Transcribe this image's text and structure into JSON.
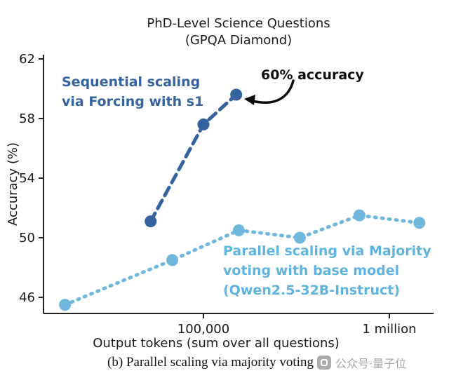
{
  "title": {
    "line1": "PhD-Level Science Questions",
    "line2": "(GPQA Diamond)"
  },
  "chart_data": {
    "type": "line",
    "title": "PhD-Level Science Questions (GPQA Diamond)",
    "xlabel": "Output tokens (sum over all questions)",
    "ylabel": "Accuracy (%)",
    "x_scale": "log",
    "x_ticks": [
      {
        "value": 100000,
        "label": "100,000"
      },
      {
        "value": 1000000,
        "label": "1 million"
      }
    ],
    "y_ticks": [
      46,
      50,
      54,
      58,
      62
    ],
    "ylim": [
      44.8,
      62
    ],
    "grid": false,
    "legend_position": "none (in-plot text labels)",
    "series": [
      {
        "name": "Sequential scaling via Forcing with s1",
        "color": "#34639f",
        "style": "dashed",
        "points": [
          {
            "x": 52000,
            "y": 51.1
          },
          {
            "x": 100000,
            "y": 57.6
          },
          {
            "x": 150000,
            "y": 59.6
          }
        ]
      },
      {
        "name": "Parallel scaling via Majority voting with base model (Qwen2.5-32B-Instruct)",
        "color": "#6fb7dd",
        "style": "dotted",
        "points": [
          {
            "x": 18000,
            "y": 45.5
          },
          {
            "x": 68000,
            "y": 48.5
          },
          {
            "x": 155000,
            "y": 50.5
          },
          {
            "x": 330000,
            "y": 50.0
          },
          {
            "x": 690000,
            "y": 51.5
          },
          {
            "x": 1450000,
            "y": 51.0
          }
        ]
      }
    ],
    "annotations": [
      {
        "text": "60% accuracy",
        "points_to": {
          "x": 150000,
          "y": 59.6
        }
      }
    ]
  },
  "labels": {
    "sequential": [
      "Sequential scaling",
      "via Forcing with s1"
    ],
    "parallel": [
      "Parallel scaling via Majority",
      "voting with base model",
      "(Qwen2.5-32B-Instruct)"
    ],
    "accuracy_note": "60% accuracy"
  },
  "caption": "(b) Parallel scaling via majority voting",
  "watermark": {
    "text": "公众号·量子位"
  }
}
